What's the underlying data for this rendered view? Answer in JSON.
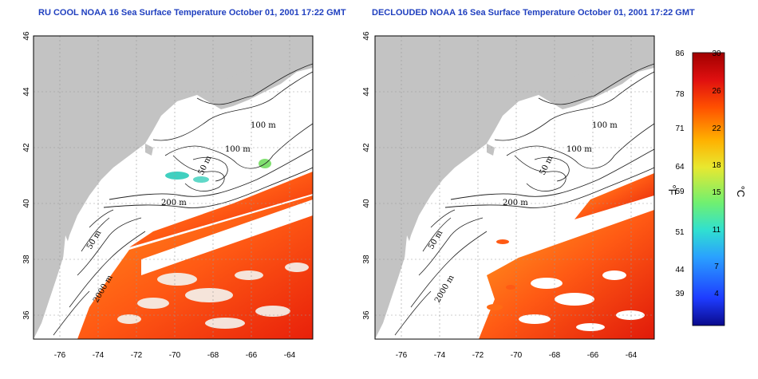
{
  "maps": [
    {
      "title": "RU COOL NOAA 16 Sea Surface Temperature October 01, 2001 17:22 GMT",
      "x_ticks": [
        "-76",
        "-74",
        "-72",
        "-70",
        "-68",
        "-66",
        "-64"
      ],
      "y_ticks": [
        "46",
        "44",
        "42",
        "40",
        "38",
        "36"
      ],
      "contour_labels": [
        "100 m",
        "100 m",
        "50 m",
        "200 m",
        "50 m",
        "2000 m"
      ]
    },
    {
      "title": "DECLOUDED NOAA 16 Sea Surface Temperature October 01, 2001 17:22 GMT",
      "x_ticks": [
        "-76",
        "-74",
        "-72",
        "-70",
        "-68",
        "-66",
        "-64"
      ],
      "y_ticks": [
        "46",
        "44",
        "42",
        "40",
        "38",
        "36"
      ],
      "contour_labels": [
        "100 m",
        "100 m",
        "50 m",
        "200 m",
        "50 m",
        "2000 m"
      ]
    }
  ],
  "colorbar": {
    "fahrenheit_ticks": [
      "86",
      "78",
      "71",
      "64",
      "59",
      "51",
      "44",
      "39"
    ],
    "celsius_ticks": [
      "30",
      "26",
      "22",
      "18",
      "15",
      "11",
      "7",
      "4"
    ],
    "fahrenheit_unit": "°F",
    "celsius_unit": "°C",
    "colors": [
      "#0a0a8c",
      "#1e3cff",
      "#2aa0ff",
      "#30e0d0",
      "#70f070",
      "#e8e830",
      "#ffb000",
      "#ff5000",
      "#e01010",
      "#a00000"
    ]
  }
}
